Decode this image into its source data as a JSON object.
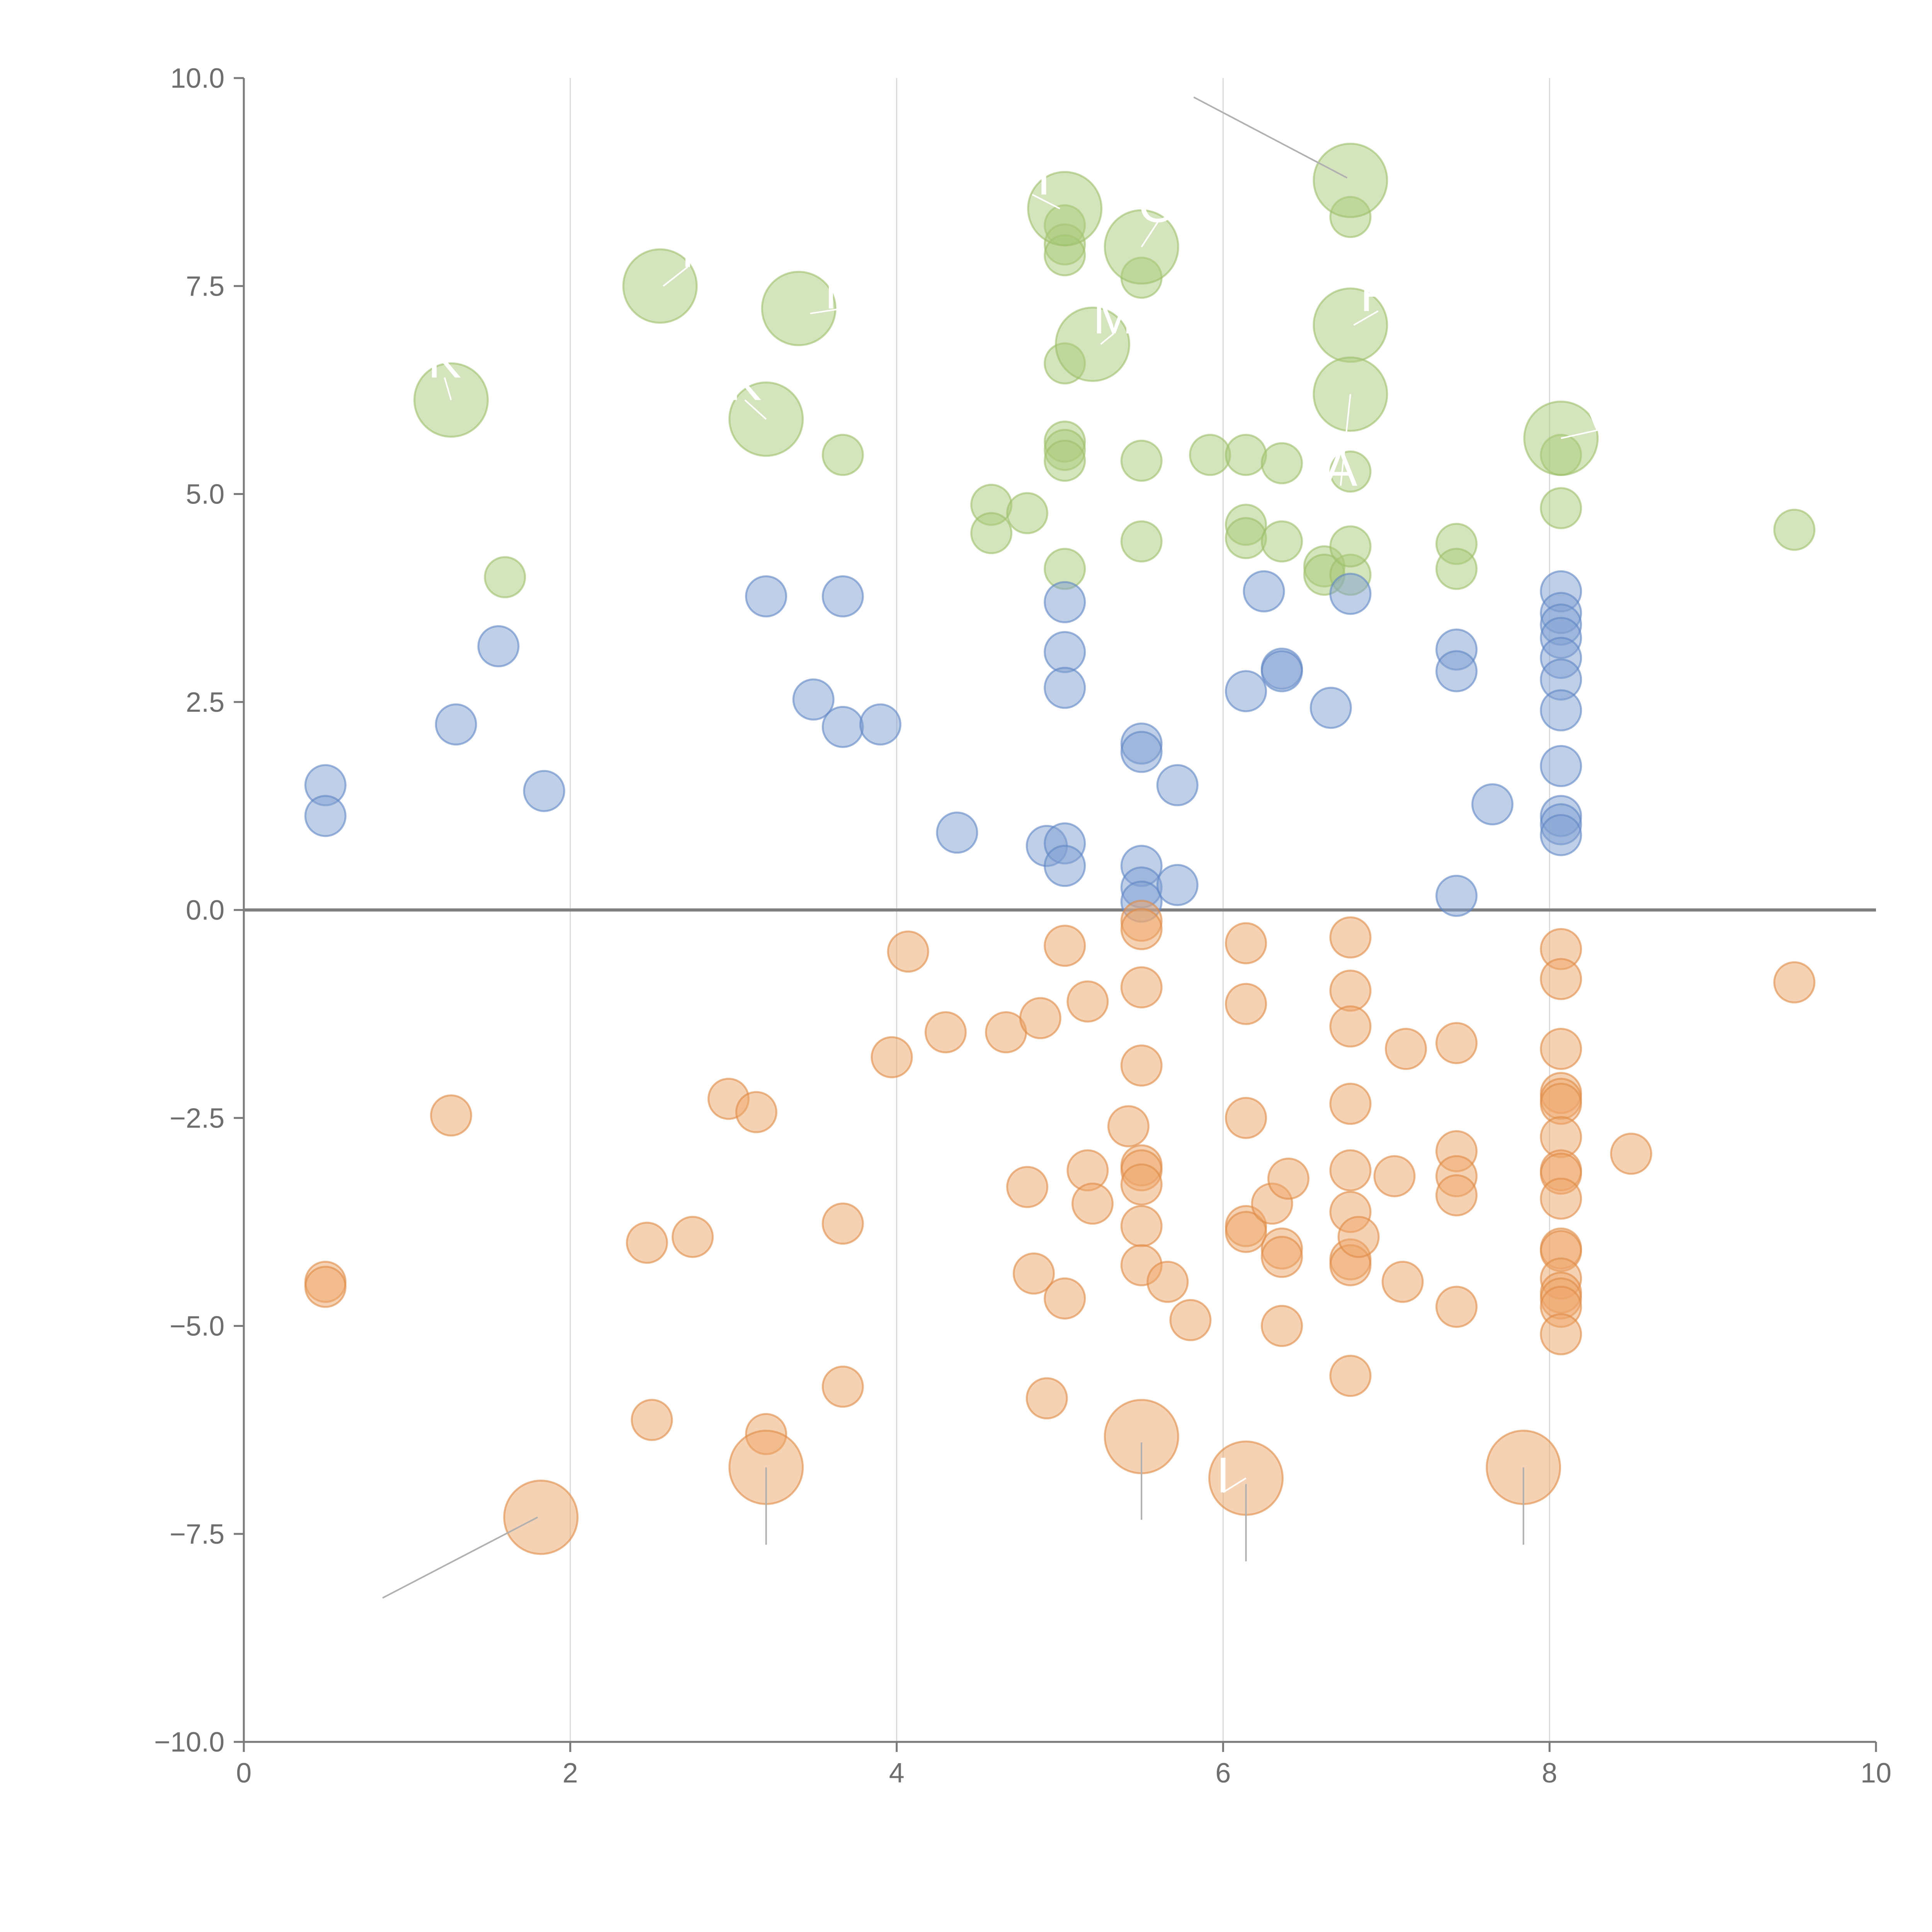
{
  "chart_data": {
    "type": "scatter",
    "title": "",
    "xlabel": "",
    "ylabel": "",
    "xlim": [
      0,
      10
    ],
    "ylim": [
      -10,
      10
    ],
    "x_ticks": [
      0,
      2,
      4,
      6,
      8,
      10
    ],
    "x_tick_labels": [
      "0",
      "2",
      "4",
      "6",
      "8",
      "10"
    ],
    "y_ticks": [
      10,
      7.5,
      5,
      2.5,
      0,
      -2.5,
      -5,
      -7.5,
      -10
    ],
    "y_tick_labels": [
      "10.0",
      "7.5",
      "5.0",
      "2.5",
      "0.0",
      "−2.5",
      "−5.0",
      "−7.5",
      "−10.0"
    ],
    "vertical_grid": [
      2,
      4,
      6,
      8
    ],
    "reference_line_y": 0,
    "colors": {
      "green_fill": "#a9c97a",
      "green_stroke": "#9dbf6b",
      "blue_fill": "#7f9fd1",
      "blue_stroke": "#5f86c4",
      "orange_fill": "#eda66a",
      "orange_stroke": "#e08a45"
    },
    "series": [
      {
        "name": "green",
        "fill": "#a9c97a",
        "stroke": "#9dbf6b",
        "points": [
          [
            1.6,
            4.0
          ],
          [
            3.67,
            5.47
          ],
          [
            4.58,
            4.87
          ],
          [
            4.58,
            4.53
          ],
          [
            4.8,
            4.77
          ],
          [
            5.03,
            5.63
          ],
          [
            5.03,
            5.53
          ],
          [
            5.03,
            5.4
          ],
          [
            5.03,
            4.1
          ],
          [
            5.03,
            6.57
          ],
          [
            5.03,
            8.23
          ],
          [
            5.03,
            8.0
          ],
          [
            5.03,
            7.87
          ],
          [
            5.5,
            7.6
          ],
          [
            5.5,
            5.4
          ],
          [
            5.5,
            4.43
          ],
          [
            5.92,
            5.47
          ],
          [
            6.14,
            5.47
          ],
          [
            6.14,
            4.63
          ],
          [
            6.14,
            4.47
          ],
          [
            6.36,
            5.37
          ],
          [
            6.36,
            4.43
          ],
          [
            6.62,
            4.13
          ],
          [
            6.62,
            4.03
          ],
          [
            6.78,
            4.03
          ],
          [
            6.78,
            4.37
          ],
          [
            6.78,
            5.27
          ],
          [
            6.78,
            8.33
          ],
          [
            7.43,
            4.4
          ],
          [
            7.43,
            4.1
          ],
          [
            8.07,
            5.47
          ],
          [
            8.07,
            4.83
          ],
          [
            9.5,
            4.57
          ]
        ]
      },
      {
        "name": "blue",
        "fill": "#7f9fd1",
        "stroke": "#5f86c4",
        "points": [
          [
            0.5,
            1.5
          ],
          [
            0.5,
            1.13
          ],
          [
            1.3,
            2.23
          ],
          [
            1.56,
            3.17
          ],
          [
            1.84,
            1.43
          ],
          [
            3.2,
            3.77
          ],
          [
            3.49,
            2.53
          ],
          [
            3.67,
            3.77
          ],
          [
            3.67,
            2.2
          ],
          [
            3.9,
            2.23
          ],
          [
            4.37,
            0.93
          ],
          [
            4.92,
            0.77
          ],
          [
            5.03,
            0.8
          ],
          [
            5.03,
            0.53
          ],
          [
            5.03,
            3.7
          ],
          [
            5.03,
            3.1
          ],
          [
            5.03,
            2.67
          ],
          [
            5.5,
            2.0
          ],
          [
            5.5,
            1.9
          ],
          [
            5.5,
            0.53
          ],
          [
            5.5,
            0.27
          ],
          [
            5.5,
            0.1
          ],
          [
            5.72,
            1.5
          ],
          [
            5.72,
            0.3
          ],
          [
            6.14,
            2.63
          ],
          [
            6.25,
            3.83
          ],
          [
            6.36,
            2.9
          ],
          [
            6.36,
            2.87
          ],
          [
            6.66,
            2.43
          ],
          [
            6.78,
            3.8
          ],
          [
            7.43,
            3.13
          ],
          [
            7.43,
            2.87
          ],
          [
            7.43,
            0.17
          ],
          [
            7.65,
            1.27
          ],
          [
            8.07,
            3.83
          ],
          [
            8.07,
            3.57
          ],
          [
            8.07,
            3.43
          ],
          [
            8.07,
            3.27
          ],
          [
            8.07,
            3.03
          ],
          [
            8.07,
            2.77
          ],
          [
            8.07,
            2.4
          ],
          [
            8.07,
            1.73
          ],
          [
            8.07,
            1.13
          ],
          [
            8.07,
            1.03
          ],
          [
            8.07,
            0.9
          ]
        ]
      },
      {
        "name": "orange",
        "fill": "#eda66a",
        "stroke": "#e08a45",
        "points": [
          [
            0.5,
            -4.47
          ],
          [
            0.5,
            -4.53
          ],
          [
            1.27,
            -2.47
          ],
          [
            2.47,
            -4.0
          ],
          [
            2.5,
            -6.13
          ],
          [
            2.75,
            -3.93
          ],
          [
            2.97,
            -2.27
          ],
          [
            3.14,
            -2.43
          ],
          [
            3.2,
            -6.3
          ],
          [
            3.67,
            -3.77
          ],
          [
            3.67,
            -5.73
          ],
          [
            3.97,
            -1.77
          ],
          [
            4.07,
            -0.5
          ],
          [
            4.3,
            -1.47
          ],
          [
            4.67,
            -1.47
          ],
          [
            4.8,
            -3.33
          ],
          [
            4.84,
            -4.37
          ],
          [
            4.88,
            -1.3
          ],
          [
            4.92,
            -5.87
          ],
          [
            5.03,
            -0.43
          ],
          [
            5.03,
            -4.67
          ],
          [
            5.17,
            -1.1
          ],
          [
            5.17,
            -3.13
          ],
          [
            5.2,
            -3.53
          ],
          [
            5.42,
            -2.6
          ],
          [
            5.5,
            -0.13
          ],
          [
            5.5,
            -0.23
          ],
          [
            5.5,
            -0.93
          ],
          [
            5.5,
            -1.87
          ],
          [
            5.5,
            -3.07
          ],
          [
            5.5,
            -3.13
          ],
          [
            5.5,
            -3.3
          ],
          [
            5.5,
            -3.8
          ],
          [
            5.5,
            -4.27
          ],
          [
            5.66,
            -4.47
          ],
          [
            5.8,
            -4.93
          ],
          [
            6.14,
            -0.4
          ],
          [
            6.14,
            -1.13
          ],
          [
            6.14,
            -2.5
          ],
          [
            6.14,
            -3.8
          ],
          [
            6.14,
            -3.87
          ],
          [
            6.3,
            -3.53
          ],
          [
            6.36,
            -4.07
          ],
          [
            6.36,
            -4.17
          ],
          [
            6.36,
            -5.0
          ],
          [
            6.4,
            -3.23
          ],
          [
            6.78,
            -0.33
          ],
          [
            6.78,
            -0.97
          ],
          [
            6.78,
            -1.4
          ],
          [
            6.78,
            -2.33
          ],
          [
            6.78,
            -3.13
          ],
          [
            6.78,
            -3.63
          ],
          [
            6.78,
            -4.2
          ],
          [
            6.78,
            -4.27
          ],
          [
            6.78,
            -5.6
          ],
          [
            6.83,
            -3.93
          ],
          [
            7.05,
            -3.2
          ],
          [
            7.1,
            -4.47
          ],
          [
            7.12,
            -1.67
          ],
          [
            7.43,
            -1.6
          ],
          [
            7.43,
            -2.9
          ],
          [
            7.43,
            -3.2
          ],
          [
            7.43,
            -3.43
          ],
          [
            7.43,
            -4.77
          ],
          [
            8.07,
            -0.47
          ],
          [
            8.07,
            -0.83
          ],
          [
            8.07,
            -1.67
          ],
          [
            8.07,
            -2.2
          ],
          [
            8.07,
            -2.27
          ],
          [
            8.07,
            -2.33
          ],
          [
            8.07,
            -2.73
          ],
          [
            8.07,
            -3.13
          ],
          [
            8.07,
            -3.17
          ],
          [
            8.07,
            -3.47
          ],
          [
            8.07,
            -4.07
          ],
          [
            8.07,
            -4.1
          ],
          [
            8.07,
            -4.43
          ],
          [
            8.07,
            -4.6
          ],
          [
            8.07,
            -4.67
          ],
          [
            8.07,
            -4.77
          ],
          [
            8.07,
            -5.1
          ],
          [
            8.5,
            -2.93
          ],
          [
            9.5,
            -0.87
          ]
        ]
      }
    ],
    "highlighted_points": [
      {
        "x": 1.27,
        "y": 6.13,
        "series": "green"
      },
      {
        "x": 2.55,
        "y": 7.5,
        "series": "green"
      },
      {
        "x": 3.2,
        "y": 5.9,
        "series": "green"
      },
      {
        "x": 3.4,
        "y": 7.23,
        "series": "green"
      },
      {
        "x": 5.03,
        "y": 8.43,
        "series": "green"
      },
      {
        "x": 5.2,
        "y": 6.8,
        "series": "green"
      },
      {
        "x": 5.5,
        "y": 7.97,
        "series": "green"
      },
      {
        "x": 6.78,
        "y": 8.77,
        "series": "green"
      },
      {
        "x": 6.78,
        "y": 7.03,
        "series": "green"
      },
      {
        "x": 6.78,
        "y": 6.2,
        "series": "green"
      },
      {
        "x": 8.07,
        "y": 5.67,
        "series": "green"
      },
      {
        "x": 1.82,
        "y": -7.3,
        "series": "orange"
      },
      {
        "x": 3.2,
        "y": -6.7,
        "series": "orange"
      },
      {
        "x": 5.5,
        "y": -6.33,
        "series": "orange"
      },
      {
        "x": 6.14,
        "y": -6.83,
        "series": "orange"
      },
      {
        "x": 7.84,
        "y": -6.7,
        "series": "orange"
      }
    ],
    "annotations": [
      {
        "type": "outer",
        "anchor": [
          6.76,
          8.8
        ],
        "end": [
          5.82,
          9.77
        ]
      },
      {
        "type": "outer",
        "anchor": [
          1.8,
          -7.3
        ],
        "end": [
          0.85,
          -8.27
        ]
      },
      {
        "type": "outer",
        "anchor": [
          3.2,
          -6.7
        ],
        "end": [
          3.2,
          -7.63
        ]
      },
      {
        "type": "outer",
        "anchor": [
          5.5,
          -6.4
        ],
        "end": [
          5.5,
          -7.33
        ]
      },
      {
        "type": "outer",
        "anchor": [
          6.14,
          -6.9
        ],
        "end": [
          6.14,
          -7.83
        ]
      },
      {
        "type": "outer",
        "anchor": [
          7.84,
          -6.7
        ],
        "end": [
          7.84,
          -7.63
        ]
      },
      {
        "type": "inner",
        "anchor": [
          1.27,
          6.13
        ],
        "end": [
          1.23,
          6.4
        ],
        "text": "K"
      },
      {
        "type": "inner",
        "anchor": [
          2.57,
          7.5
        ],
        "end": [
          2.72,
          7.73
        ],
        "text": "I"
      },
      {
        "type": "inner",
        "anchor": [
          3.2,
          5.9
        ],
        "end": [
          3.07,
          6.13
        ],
        "text": "K"
      },
      {
        "type": "inner",
        "anchor": [
          3.47,
          7.17
        ],
        "end": [
          3.67,
          7.23
        ],
        "text": "N"
      },
      {
        "type": "inner",
        "anchor": [
          5.0,
          8.43
        ],
        "end": [
          4.83,
          8.6
        ],
        "text": "H"
      },
      {
        "type": "inner",
        "anchor": [
          5.25,
          6.8
        ],
        "end": [
          5.33,
          6.93
        ],
        "text": "M"
      },
      {
        "type": "inner",
        "anchor": [
          5.5,
          7.97
        ],
        "end": [
          5.6,
          8.27
        ],
        "text": "O"
      },
      {
        "type": "inner",
        "anchor": [
          6.78,
          6.2
        ],
        "end": [
          6.72,
          5.1
        ],
        "text": "A"
      },
      {
        "type": "inner",
        "anchor": [
          6.8,
          7.03
        ],
        "end": [
          6.95,
          7.2
        ],
        "text": "R"
      },
      {
        "type": "inner",
        "anchor": [
          8.07,
          5.67
        ],
        "end": [
          8.3,
          5.77
        ],
        "text": "V"
      },
      {
        "type": "inner",
        "anchor": [
          6.14,
          -6.83
        ],
        "end": [
          6.0,
          -7.0
        ],
        "text": "I"
      }
    ]
  }
}
